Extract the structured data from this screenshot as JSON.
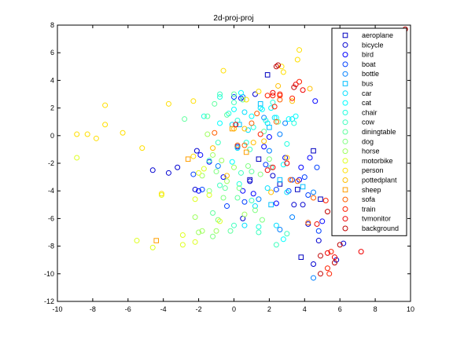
{
  "chart_data": {
    "type": "scatter",
    "title": "2d-proj-proj",
    "xlabel": "",
    "ylabel": "",
    "xlim": [
      -10,
      10
    ],
    "ylim": [
      -12,
      8
    ],
    "xticks": [
      -10,
      -8,
      -6,
      -4,
      -2,
      0,
      2,
      4,
      6,
      8,
      10
    ],
    "yticks": [
      -12,
      -10,
      -8,
      -6,
      -4,
      -2,
      0,
      2,
      4,
      6,
      8
    ],
    "grid": false,
    "legend_position": "top-right",
    "series": [
      {
        "name": "aeroplane",
        "marker": "square",
        "color": "#0000bf",
        "points": [
          [
            1.9,
            4.4
          ],
          [
            3.8,
            -8.8
          ],
          [
            3.6,
            -3.9
          ],
          [
            2.6,
            -3.5
          ],
          [
            4.9,
            -4.6
          ],
          [
            1.4,
            -1.7
          ],
          [
            4.5,
            -1.1
          ],
          [
            0.9,
            -3.2
          ]
        ]
      },
      {
        "name": "bicycle",
        "marker": "circle",
        "color": "#0000d0",
        "points": [
          [
            -4.6,
            -2.5
          ],
          [
            -3.7,
            -2.7
          ],
          [
            -3.2,
            -2.3
          ],
          [
            -2.1,
            -1.1
          ],
          [
            -2.2,
            -3.9
          ],
          [
            0.2,
            -0.8
          ],
          [
            0.9,
            -3.3
          ],
          [
            2.2,
            -2.9
          ],
          [
            3.9,
            -5.0
          ],
          [
            4.8,
            -7.6
          ],
          [
            5.8,
            -9.0
          ],
          [
            4.5,
            -9.3
          ],
          [
            6.2,
            -7.8
          ],
          [
            4.2,
            -6.4
          ],
          [
            1.2,
            3.0
          ],
          [
            3.4,
            -5.0
          ],
          [
            0.5,
            -6.0
          ]
        ]
      },
      {
        "name": "bird",
        "marker": "circle",
        "color": "#0000ff",
        "points": [
          [
            -1.9,
            -1.4
          ],
          [
            -2.0,
            -4.0
          ],
          [
            -1.4,
            -1.9
          ],
          [
            -0.6,
            -3.0
          ],
          [
            0.5,
            -4.0
          ],
          [
            1.1,
            -4.2
          ],
          [
            2.4,
            -4.9
          ],
          [
            3.8,
            -2.3
          ],
          [
            4.3,
            -1.6
          ],
          [
            3.7,
            -3.2
          ],
          [
            5.0,
            -6.2
          ],
          [
            4.6,
            2.5
          ],
          [
            1.7,
            -0.8
          ],
          [
            0.4,
            2.7
          ],
          [
            2.0,
            -0.1
          ],
          [
            2.9,
            -1.6
          ]
        ]
      },
      {
        "name": "boat",
        "marker": "circle",
        "color": "#0040ff",
        "points": [
          [
            -1.8,
            -3.9
          ],
          [
            -2.3,
            -2.8
          ],
          [
            -0.4,
            -5.1
          ],
          [
            0.6,
            -4.8
          ],
          [
            2.4,
            -3.9
          ],
          [
            3.3,
            -3.2
          ],
          [
            4.0,
            -3.0
          ],
          [
            4.7,
            -2.3
          ],
          [
            4.8,
            -6.9
          ],
          [
            4.2,
            -4.3
          ],
          [
            0.0,
            2.8
          ],
          [
            1.8,
            -2.1
          ],
          [
            3.1,
            -4.0
          ]
        ]
      },
      {
        "name": "bottle",
        "marker": "circle",
        "color": "#0080ff",
        "points": [
          [
            0.5,
            2.8
          ],
          [
            1.7,
            1.3
          ],
          [
            2.9,
            0.9
          ],
          [
            4.5,
            -10.3
          ],
          [
            4.5,
            -4.1
          ],
          [
            3.3,
            -5.9
          ],
          [
            2.6,
            -6.8
          ],
          [
            1.4,
            -4.6
          ],
          [
            -0.9,
            -2.2
          ],
          [
            2.0,
            -1.1
          ],
          [
            2.6,
            0.1
          ]
        ]
      },
      {
        "name": "bus",
        "marker": "square",
        "color": "#00bfff",
        "points": [
          [
            0.3,
            0.8
          ],
          [
            2.0,
            0.6
          ],
          [
            1.5,
            2.3
          ],
          [
            2.6,
            -3.2
          ],
          [
            3.9,
            -3.7
          ],
          [
            2.1,
            -5.0
          ]
        ]
      },
      {
        "name": "car",
        "marker": "circle",
        "color": "#00dfff",
        "points": [
          [
            0.2,
            -0.9
          ],
          [
            0.8,
            0.4
          ],
          [
            2.3,
            1.3
          ],
          [
            1.9,
            0.9
          ],
          [
            3.3,
            1.2
          ],
          [
            1.5,
            2.0
          ],
          [
            1.9,
            -3.8
          ],
          [
            2.4,
            -6.5
          ],
          [
            3.0,
            -4.1
          ],
          [
            0.6,
            -6.5
          ],
          [
            1.2,
            -5.1
          ],
          [
            0.6,
            1.7
          ],
          [
            -0.1,
            0.8
          ]
        ]
      },
      {
        "name": "cat",
        "marker": "circle",
        "color": "#00ffff",
        "points": [
          [
            -0.8,
            0.9
          ],
          [
            0.0,
            1.9
          ],
          [
            1.0,
            1.4
          ],
          [
            2.1,
            2.0
          ],
          [
            2.4,
            1.3
          ],
          [
            3.1,
            1.2
          ],
          [
            3.5,
            1.4
          ],
          [
            2.8,
            -2.1
          ],
          [
            -0.1,
            -1.9
          ],
          [
            2.8,
            -7.5
          ],
          [
            0.4,
            3.1
          ],
          [
            1.6,
            1.9
          ]
        ]
      },
      {
        "name": "chair",
        "marker": "circle",
        "color": "#20ffdf",
        "points": [
          [
            0.2,
            1.1
          ],
          [
            -0.3,
            1.6
          ],
          [
            1.1,
            0.6
          ],
          [
            0.7,
            -0.5
          ],
          [
            1.8,
            1.1
          ],
          [
            2.2,
            2.4
          ],
          [
            -0.8,
            2.8
          ],
          [
            -1.7,
            1.4
          ],
          [
            3.4,
            0.9
          ],
          [
            1.4,
            -6.6
          ],
          [
            0.3,
            -3.5
          ],
          [
            3.0,
            -0.6
          ]
        ]
      },
      {
        "name": "cow",
        "marker": "circle",
        "color": "#40ffbf",
        "points": [
          [
            0.0,
            2.4
          ],
          [
            -0.9,
            -0.5
          ],
          [
            -1.4,
            -1.8
          ],
          [
            -0.8,
            -3.6
          ],
          [
            0.4,
            -2.7
          ],
          [
            2.4,
            -7.9
          ],
          [
            3.0,
            -7.1
          ],
          [
            1.4,
            -7.0
          ],
          [
            0.0,
            -6.5
          ],
          [
            -0.8,
            3.0
          ],
          [
            1.0,
            -4.7
          ],
          [
            0.9,
            -1.0
          ],
          [
            2.1,
            -2.3
          ]
        ]
      },
      {
        "name": "diningtable",
        "marker": "circle",
        "color": "#60ff9f",
        "points": [
          [
            -2.8,
            1.2
          ],
          [
            -1.5,
            1.4
          ],
          [
            -1.1,
            2.3
          ],
          [
            -0.4,
            1.5
          ],
          [
            0.0,
            3.0
          ],
          [
            0.5,
            2.6
          ],
          [
            2.5,
            1.0
          ],
          [
            1.7,
            0.3
          ],
          [
            -0.2,
            -6.9
          ],
          [
            -0.5,
            -3.8
          ],
          [
            0.2,
            -4.5
          ],
          [
            -1.2,
            -5.6
          ],
          [
            1.0,
            -2.6
          ]
        ]
      },
      {
        "name": "dog",
        "marker": "circle",
        "color": "#80ff80",
        "points": [
          [
            -1.4,
            -4.0
          ],
          [
            -1.0,
            -2.6
          ],
          [
            -0.6,
            -4.5
          ],
          [
            0.3,
            -3.8
          ],
          [
            1.5,
            -2.8
          ],
          [
            1.2,
            -5.4
          ],
          [
            1.6,
            -6.1
          ],
          [
            -1.2,
            -7.3
          ],
          [
            -0.9,
            -6.1
          ],
          [
            0.8,
            -2.2
          ],
          [
            2.0,
            -1.7
          ]
        ]
      },
      {
        "name": "horse",
        "marker": "circle",
        "color": "#9fff60",
        "points": [
          [
            -1.8,
            -2.9
          ],
          [
            -1.2,
            -1.4
          ],
          [
            -0.7,
            -1.8
          ],
          [
            0.0,
            -2.3
          ],
          [
            -0.4,
            -3.3
          ],
          [
            -1.8,
            -6.9
          ],
          [
            -2.0,
            -7.0
          ],
          [
            -1.0,
            -6.9
          ],
          [
            -2.2,
            -5.9
          ],
          [
            -1.5,
            0.1
          ],
          [
            0.6,
            -5.7
          ]
        ]
      },
      {
        "name": "motorbike",
        "marker": "circle",
        "color": "#dfff20",
        "points": [
          [
            -8.9,
            -1.6
          ],
          [
            -5.5,
            -7.6
          ],
          [
            -4.6,
            -8.1
          ],
          [
            -4.1,
            -4.3
          ],
          [
            -2.9,
            -7.2
          ],
          [
            -2.2,
            -7.7
          ],
          [
            -2.9,
            -7.9
          ],
          [
            -2.2,
            -4.6
          ],
          [
            -2.0,
            -2.7
          ],
          [
            -1.7,
            -2.4
          ],
          [
            -1.4,
            -4.3
          ],
          [
            -0.8,
            -6.2
          ]
        ]
      },
      {
        "name": "person",
        "marker": "circle",
        "color": "#ffdf00",
        "points": [
          [
            -8.9,
            0.1
          ],
          [
            -8.3,
            0.1
          ],
          [
            -7.8,
            -0.2
          ],
          [
            -7.3,
            0.8
          ],
          [
            -7.3,
            2.2
          ],
          [
            -6.3,
            0.2
          ],
          [
            -5.2,
            -0.9
          ],
          [
            -3.7,
            2.3
          ],
          [
            -2.3,
            2.5
          ],
          [
            -2.3,
            -1.5
          ],
          [
            1.4,
            3.2
          ],
          [
            0.7,
            2.6
          ],
          [
            2.8,
            4.6
          ],
          [
            3.7,
            6.2
          ],
          [
            3.6,
            5.5
          ],
          [
            2.7,
            5.0
          ],
          [
            -0.6,
            4.7
          ],
          [
            -4.1,
            -4.2
          ]
        ]
      },
      {
        "name": "pottedplant",
        "marker": "circle",
        "color": "#ffbf00",
        "points": [
          [
            -1.2,
            -0.9
          ],
          [
            0.0,
            0.5
          ],
          [
            0.6,
            0.5
          ],
          [
            1.7,
            -0.4
          ],
          [
            2.5,
            3.6
          ],
          [
            3.3,
            2.5
          ],
          [
            4.3,
            3.4
          ],
          [
            3.0,
            -1.6
          ],
          [
            2.1,
            -4.1
          ],
          [
            -0.4,
            -2.9
          ],
          [
            1.1,
            -0.5
          ]
        ]
      },
      {
        "name": "sheep",
        "marker": "square",
        "color": "#ff9f00",
        "points": [
          [
            -4.4,
            -7.6
          ],
          [
            -0.1,
            0.5
          ],
          [
            0.7,
            -1.2
          ],
          [
            -2.6,
            -1.7
          ]
        ]
      },
      {
        "name": "sofa",
        "marker": "circle",
        "color": "#ff6000",
        "points": [
          [
            -1.1,
            0.2
          ],
          [
            0.2,
            -0.7
          ],
          [
            0.6,
            -0.7
          ],
          [
            1.0,
            0.9
          ],
          [
            2.6,
            2.6
          ],
          [
            2.4,
            1.0
          ],
          [
            3.2,
            -3.2
          ],
          [
            3.6,
            -3.3
          ],
          [
            4.2,
            -6.3
          ],
          [
            4.5,
            -4.5
          ],
          [
            1.3,
            1.6
          ]
        ]
      },
      {
        "name": "train",
        "marker": "circle",
        "color": "#ff2000",
        "points": [
          [
            1.5,
            0.1
          ],
          [
            2.3,
            2.1
          ],
          [
            2.6,
            2.9
          ],
          [
            2.6,
            3.0
          ],
          [
            2.2,
            2.9
          ],
          [
            3.3,
            2.7
          ],
          [
            3.7,
            3.9
          ],
          [
            5.2,
            -4.7
          ],
          [
            5.4,
            -10.0
          ],
          [
            5.3,
            -9.6
          ],
          [
            5.5,
            -8.4
          ],
          [
            1.9,
            2.9
          ]
        ]
      },
      {
        "name": "tvmonitor",
        "marker": "circle",
        "color": "#ef0000",
        "points": [
          [
            0.1,
            0.8
          ],
          [
            2.2,
            3.1
          ],
          [
            3.5,
            3.7
          ],
          [
            3.9,
            3.3
          ],
          [
            5.3,
            -8.5
          ],
          [
            5.7,
            -8.8
          ],
          [
            7.2,
            -8.4
          ],
          [
            4.7,
            -6.4
          ],
          [
            1.9,
            -2.5
          ],
          [
            2.2,
            -2.3
          ],
          [
            3.0,
            -2.0
          ]
        ]
      },
      {
        "name": "background",
        "marker": "circle",
        "color": "#bf0000",
        "points": [
          [
            9.7,
            7.7
          ],
          [
            2.4,
            5.0
          ],
          [
            2.5,
            5.1
          ],
          [
            3.4,
            3.5
          ],
          [
            5.3,
            -5.5
          ],
          [
            6.0,
            -7.9
          ],
          [
            4.9,
            -8.7
          ],
          [
            5.7,
            -9.2
          ],
          [
            4.9,
            -10.0
          ]
        ]
      }
    ]
  }
}
